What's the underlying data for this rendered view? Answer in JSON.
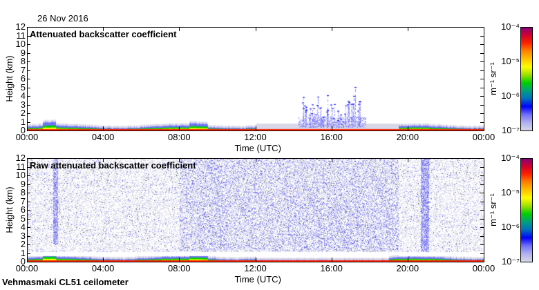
{
  "header": {
    "date": "26 Nov 2016"
  },
  "footer": {
    "instrument": "Vehmasmaki CL51 ceilometer"
  },
  "chart_data": [
    {
      "type": "heatmap",
      "title": "Attenuated backscatter coefficient",
      "xlabel": "Time (UTC)",
      "ylabel": "Height (km)",
      "xticks": [
        "00:00",
        "04:00",
        "08:00",
        "12:00",
        "16:00",
        "20:00",
        "00:00"
      ],
      "yticks": [
        "0",
        "1",
        "2",
        "3",
        "4",
        "5",
        "6",
        "7",
        "8",
        "9",
        "10",
        "11",
        "12"
      ],
      "xlim_hours": [
        0,
        24
      ],
      "ylim_km": [
        0,
        12
      ],
      "colorbar": {
        "label": "m⁻¹ sr⁻¹",
        "ticks": [
          "10⁻⁷",
          "10⁻⁶",
          "10⁻⁵",
          "10⁻⁴"
        ],
        "range": [
          1e-07,
          0.0001
        ],
        "scale": "log"
      }
    },
    {
      "type": "heatmap",
      "title": "Raw attenuated backscatter coefficient",
      "xlabel": "Time (UTC)",
      "ylabel": "Height (km)",
      "xticks": [
        "00:00",
        "04:00",
        "08:00",
        "12:00",
        "16:00",
        "20:00",
        "00:00"
      ],
      "yticks": [
        "0",
        "1",
        "2",
        "3",
        "4",
        "5",
        "6",
        "7",
        "8",
        "9",
        "10",
        "11",
        "12"
      ],
      "xlim_hours": [
        0,
        24
      ],
      "ylim_km": [
        0,
        12
      ],
      "colorbar": {
        "label": "m⁻¹ sr⁻¹",
        "ticks": [
          "10⁻⁷",
          "10⁻⁶",
          "10⁻⁵",
          "10⁻⁴"
        ],
        "range": [
          1e-07,
          0.0001
        ],
        "scale": "log"
      }
    }
  ],
  "colormap": [
    "#d8d8e8",
    "#b0b0f0",
    "#7070f8",
    "#0000ff",
    "#0070c0",
    "#00a080",
    "#00d000",
    "#a0e000",
    "#ffff00",
    "#ffc000",
    "#ff8000",
    "#ff2000",
    "#d00030",
    "#800080"
  ]
}
